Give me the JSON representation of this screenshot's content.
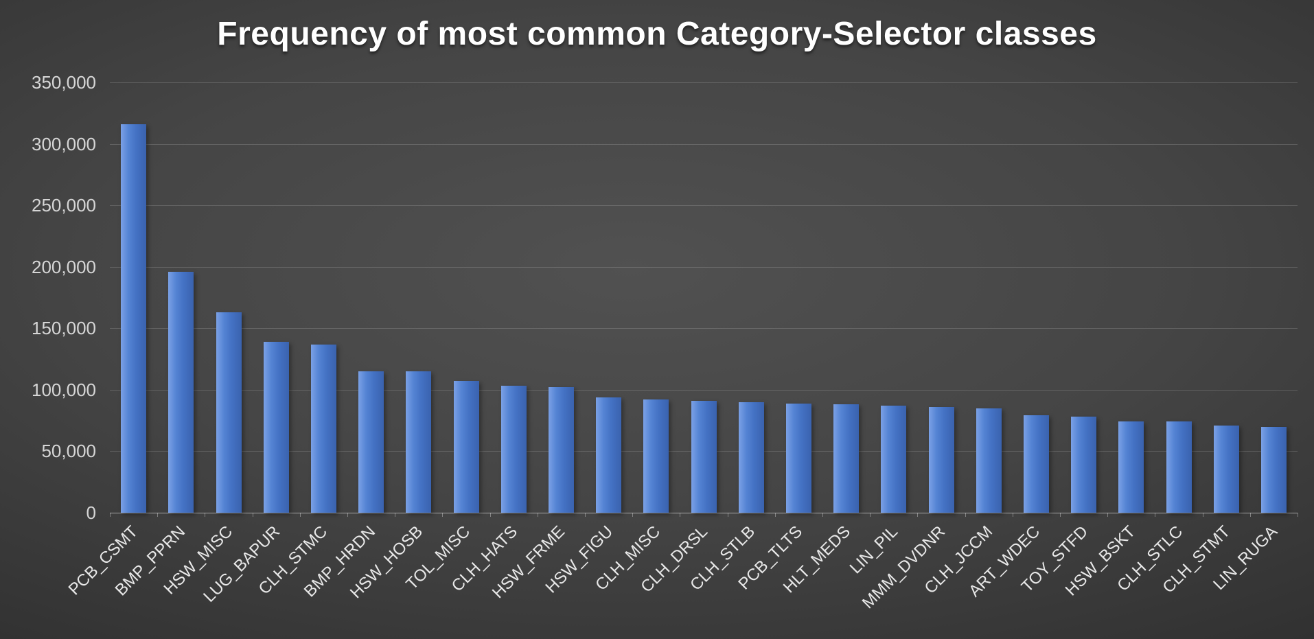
{
  "chart_data": {
    "type": "bar",
    "title": "Frequency of most common Category-Selector classes",
    "categories": [
      "PCB_CSMT",
      "BMP_PPRN",
      "HSW_MISC",
      "LUG_BAPUR",
      "CLH_STMC",
      "BMP_HRDN",
      "HSW_HOSB",
      "TOL_MISC",
      "CLH_HATS",
      "HSW_FRME",
      "HSW_FIGU",
      "CLH_MISC",
      "CLH_DRSL",
      "CLH_STLB",
      "PCB_TLTS",
      "HLT_MEDS",
      "LIN_PIL",
      "MMM_DVDNR",
      "CLH_JCCM",
      "ART_WDEC",
      "TOY_STFD",
      "HSW_BSKT",
      "CLH_STLC",
      "CLH_STMT",
      "LIN_RUGA"
    ],
    "values": [
      316000,
      196000,
      163000,
      139000,
      137000,
      115000,
      115000,
      107000,
      103000,
      102000,
      94000,
      92000,
      91000,
      90000,
      89000,
      88000,
      87000,
      86000,
      85000,
      79000,
      78000,
      74000,
      74000,
      71000,
      70000
    ],
    "xlabel": "",
    "ylabel": "",
    "ylim": [
      0,
      350000
    ],
    "ytick_step": 50000,
    "ytick_labels": [
      "0",
      "50,000",
      "100,000",
      "150,000",
      "200,000",
      "250,000",
      "300,000",
      "350,000"
    ],
    "grid": true,
    "legend": false,
    "bar_color": "#4472C4",
    "bar_color_light": "#7BA1E6",
    "bar_color_dark": "#3A62AE",
    "background_center": "#515151",
    "background_edge": "#1D1D1D",
    "title_color": "#FFFFFF",
    "axis_text_color": "#D6D6D6",
    "category_text_color": "#E8E8E8",
    "gridline_color": "rgba(255,255,255,0.16)"
  }
}
